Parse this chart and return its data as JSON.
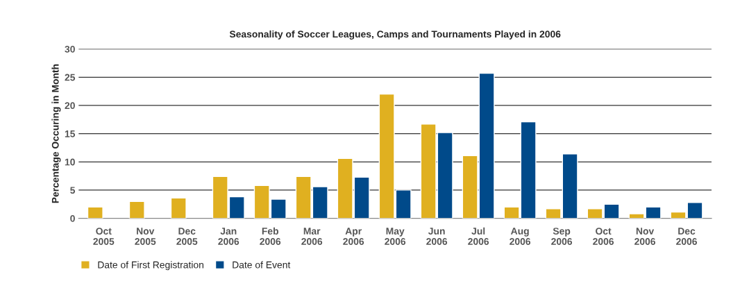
{
  "chart_data": {
    "type": "bar",
    "title": "Seasonality of Soccer Leagues, Camps and Tournaments Played in 2006",
    "ylabel": "Percentage Occuring in Month",
    "categories": [
      "Oct\n2005",
      "Nov\n2005",
      "Dec\n2005",
      "Jan\n2006",
      "Feb\n2006",
      "Mar\n2006",
      "Apr\n2006",
      "May\n2006",
      "Jun\n2006",
      "Jul\n2006",
      "Aug\n2006",
      "Sep\n2006",
      "Oct\n2006",
      "Nov\n2006",
      "Dec\n2006"
    ],
    "series": [
      {
        "name": "Date of First Registration",
        "color": "#e0b020",
        "values": [
          2.0,
          3.0,
          3.6,
          7.4,
          5.8,
          7.4,
          10.6,
          22.0,
          16.7,
          11.1,
          2.0,
          1.7,
          1.7,
          0.8,
          1.1
        ]
      },
      {
        "name": "Date of Event",
        "color": "#004a8a",
        "values": [
          null,
          null,
          null,
          3.8,
          3.4,
          5.6,
          7.3,
          5.0,
          15.2,
          25.7,
          17.1,
          11.4,
          2.5,
          2.0,
          2.8
        ]
      }
    ],
    "ylim": [
      0,
      30
    ],
    "yticks": [
      0,
      5,
      10,
      15,
      20,
      25,
      30
    ],
    "grid": "y",
    "legend": "bottom left"
  }
}
